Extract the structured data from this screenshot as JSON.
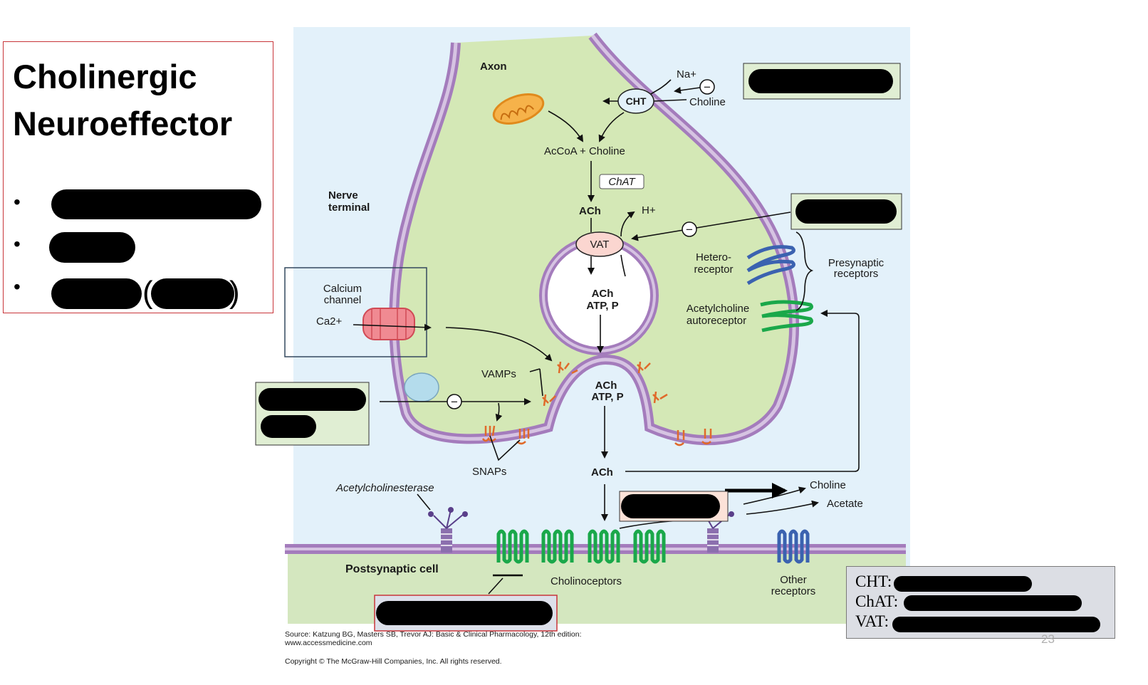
{
  "slide": {
    "title_line1": "Cholinergic",
    "title_line2": "Neuroeffector",
    "bullets": [
      "•",
      "•",
      "•"
    ],
    "paren_open": "(",
    "paren_close": ")",
    "page_number": "23"
  },
  "diagram": {
    "axon": "Axon",
    "na": "Na+",
    "cht": "CHT",
    "choline_top": "Choline",
    "accoa_choline": "AcCoA + Choline",
    "chat": "ChAT",
    "nerve_terminal_1": "Nerve",
    "nerve_terminal_2": "terminal",
    "ach_top": "ACh",
    "h_plus": "H+",
    "vat": "VAT",
    "vesicle_ach": "ACh",
    "vesicle_atp": "ATP, P",
    "hetero_1": "Hetero-",
    "hetero_2": "receptor",
    "presynaptic_1": "Presynaptic",
    "presynaptic_2": "receptors",
    "autoreceptor_1": "Acetylcholine",
    "autoreceptor_2": "autoreceptor",
    "calcium_1": "Calcium",
    "calcium_2": "channel",
    "ca2": "Ca2+",
    "vamps": "VAMPs",
    "fusion_ach": "ACh",
    "fusion_atp": "ATP, P",
    "snaps": "SNAPs",
    "ach_cleft": "ACh",
    "acetylcholinesterase": "Acetylcholinesterase",
    "choline_out": "Choline",
    "acetate": "Acetate",
    "postsynaptic": "Postsynaptic cell",
    "cholinoceptors": "Cholinoceptors",
    "other_1": "Other",
    "other_2": "receptors",
    "minus": "−",
    "source_1": "Source: Katzung BG, Masters SB, Trevor AJ: Basic & Clinical Pharmacology, 12th edition:",
    "source_2": "www.accessmedicine.com",
    "copyright": "Copyright © The McGraw-Hill Companies, Inc. All rights reserved."
  },
  "legend": {
    "row1": "CHT:",
    "row2": "ChAT:",
    "row3": "VAT:"
  }
}
